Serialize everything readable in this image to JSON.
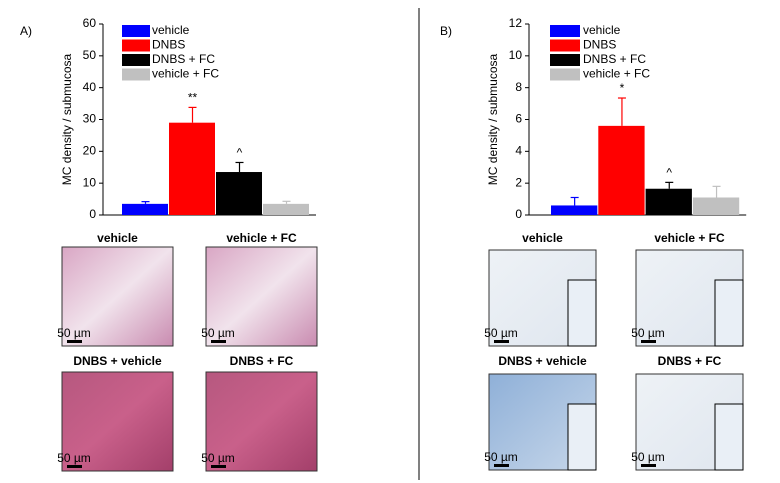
{
  "chart_data": [
    {
      "type": "bar",
      "y_label": "MC density / submucosa",
      "ylim": [
        0,
        60
      ],
      "yticks": [
        0,
        10,
        20,
        30,
        40,
        50,
        60
      ],
      "series": [
        {
          "name": "vehicle",
          "color": "#0000ff",
          "values": [
            3.5
          ],
          "errors": [
            0.7
          ]
        },
        {
          "name": "DNBS",
          "color": "#ff0000",
          "values": [
            29
          ],
          "errors": [
            4.8
          ],
          "annotation": "**"
        },
        {
          "name": "DNBS + FC",
          "color": "#000000",
          "values": [
            13.5
          ],
          "errors": [
            3
          ],
          "annotation": "^"
        },
        {
          "name": "vehicle + FC",
          "color": "#c0c0c0",
          "values": [
            3.5
          ],
          "errors": [
            0.8
          ]
        }
      ]
    },
    {
      "type": "bar",
      "y_label": "MC density / submucosa",
      "ylim": [
        0,
        12
      ],
      "yticks": [
        0,
        2,
        4,
        6,
        8,
        10,
        12
      ],
      "series": [
        {
          "name": "vehicle",
          "color": "#0000ff",
          "values": [
            0.6
          ],
          "errors": [
            0.5
          ]
        },
        {
          "name": "DNBS",
          "color": "#ff0000",
          "values": [
            5.6
          ],
          "errors": [
            1.75
          ],
          "annotation": "*"
        },
        {
          "name": "DNBS + FC",
          "color": "#000000",
          "values": [
            1.65
          ],
          "errors": [
            0.4
          ],
          "annotation": "^"
        },
        {
          "name": "vehicle + FC",
          "color": "#c0c0c0",
          "values": [
            1.1
          ],
          "errors": [
            0.7
          ]
        }
      ]
    }
  ],
  "panels": [
    {
      "label": "A)",
      "images": [
        "vehicle",
        "vehicle + FC",
        "DNBS + vehicle",
        "DNBS + FC"
      ]
    },
    {
      "label": "B)",
      "images": [
        "vehicle",
        "vehicle + FC",
        "DNBS + vehicle",
        "DNBS + FC"
      ]
    }
  ],
  "scale_bar": "50 µm"
}
